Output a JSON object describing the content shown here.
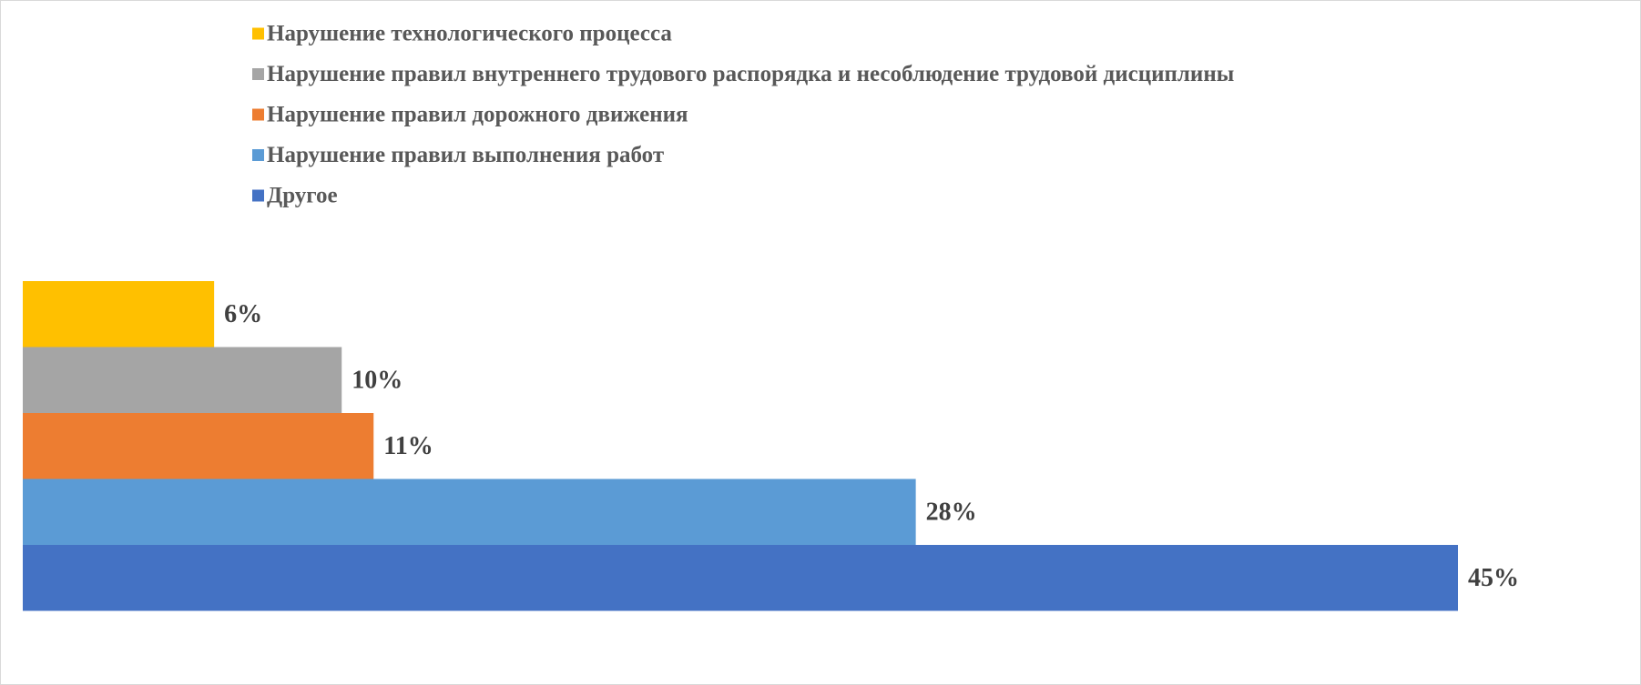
{
  "chart_data": {
    "type": "bar",
    "orientation": "horizontal",
    "title": "",
    "xlabel": "",
    "ylabel": "",
    "xlim": [
      0,
      45
    ],
    "grid": false,
    "legend_position": "top",
    "categories": [
      "Нарушение технологического процесса",
      "Нарушение правил внутреннего трудового распорядка и несоблюдение трудовой дисциплины",
      "Нарушение правил дорожного движения",
      "Нарушение правил выполнения работ",
      "Другое"
    ],
    "values": [
      6,
      10,
      11,
      28,
      45
    ],
    "value_labels": [
      "6%",
      "10%",
      "11%",
      "28%",
      "45%"
    ],
    "colors": [
      "#FFC000",
      "#A5A5A5",
      "#ED7D31",
      "#5B9BD5",
      "#4472C4"
    ]
  }
}
